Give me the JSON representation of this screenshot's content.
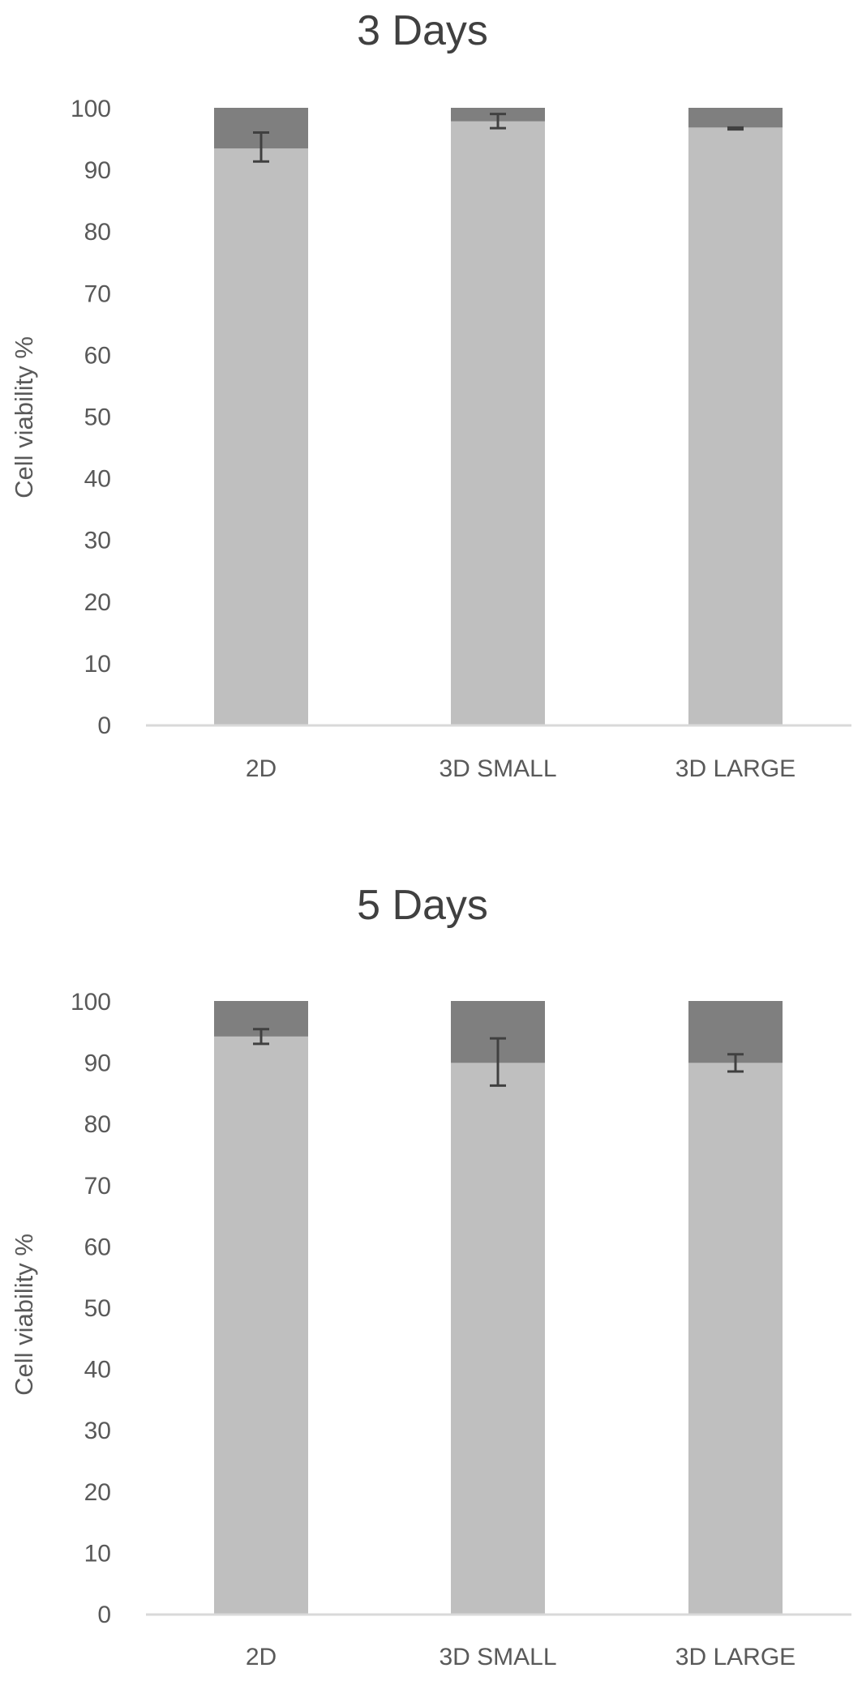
{
  "chart_data": [
    {
      "type": "bar",
      "stacked": true,
      "title": "3 Days",
      "ylabel": "Cell viability %",
      "xlabel": "",
      "ylim": [
        0,
        100
      ],
      "yticks": [
        "0",
        "10",
        "20",
        "30",
        "40",
        "50",
        "60",
        "70",
        "80",
        "90",
        "100"
      ],
      "categories": [
        "2D",
        "3D SMALL",
        "3D LARGE"
      ],
      "series": [
        {
          "values": [
            93.4,
            97.8,
            96.8
          ],
          "color": "#bfbfbf"
        },
        {
          "values": [
            6.6,
            2.2,
            3.2
          ],
          "color": "#7f7f7f"
        }
      ],
      "error_bars": [
        {
          "low": 91.3,
          "high": 96.0
        },
        {
          "low": 96.7,
          "high": 99.0
        },
        {
          "low": 96.5,
          "high": 96.8
        }
      ],
      "legend": "none",
      "grid": false
    },
    {
      "type": "bar",
      "stacked": true,
      "title": "5 Days",
      "ylabel": "Cell viability %",
      "xlabel": "",
      "ylim": [
        0,
        100
      ],
      "yticks": [
        "0",
        "10",
        "20",
        "30",
        "40",
        "50",
        "60",
        "70",
        "80",
        "90",
        "100"
      ],
      "categories": [
        "2D",
        "3D SMALL",
        "3D LARGE"
      ],
      "series": [
        {
          "values": [
            94.2,
            89.9,
            89.9
          ],
          "color": "#bfbfbf"
        },
        {
          "values": [
            5.8,
            10.1,
            10.1
          ],
          "color": "#7f7f7f"
        }
      ],
      "error_bars": [
        {
          "low": 93.0,
          "high": 95.4
        },
        {
          "low": 86.2,
          "high": 93.9
        },
        {
          "low": 88.5,
          "high": 91.3
        }
      ],
      "legend": "none",
      "grid": false
    }
  ]
}
